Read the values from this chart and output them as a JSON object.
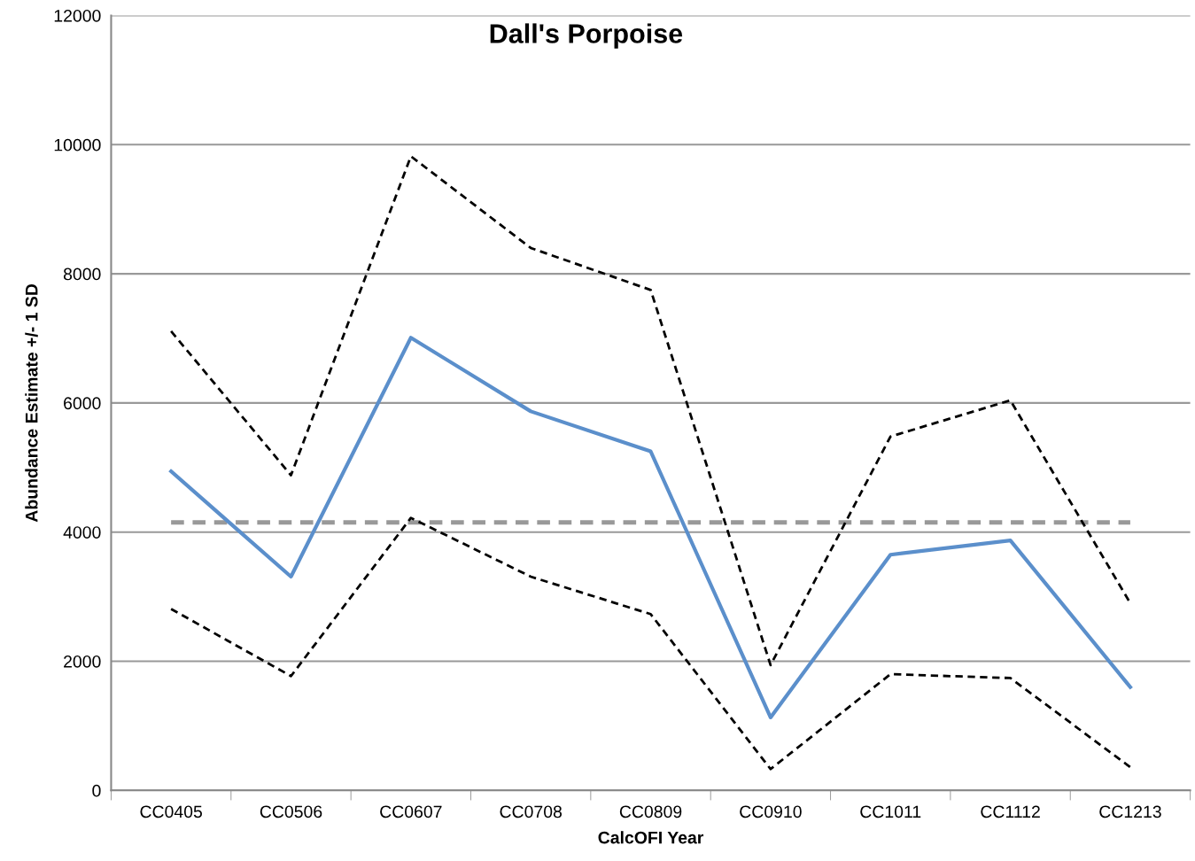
{
  "chart_data": {
    "type": "line",
    "title": "Dall's Porpoise",
    "xlabel": "CalcOFI Year",
    "ylabel": "Abundance Estimate +/- 1 SD",
    "categories": [
      "CC0405",
      "CC0506",
      "CC0607",
      "CC0708",
      "CC0809",
      "CC0910",
      "CC1011",
      "CC1112",
      "CC1213"
    ],
    "series": [
      {
        "color": "#5b8fcb",
        "line_style": "solid",
        "values": [
          4940,
          3310,
          7010,
          5870,
          5250,
          1130,
          3650,
          3870,
          1600
        ]
      },
      {
        "color": "#000000",
        "line_style": "dashed",
        "values": [
          7110,
          4880,
          9820,
          8400,
          7750,
          1940,
          5480,
          6040,
          2900
        ]
      },
      {
        "color": "#000000",
        "line_style": "dashed",
        "values": [
          2810,
          1770,
          4220,
          3310,
          2730,
          330,
          1800,
          1740,
          360
        ]
      }
    ],
    "ref_lines": [
      {
        "axis": "y",
        "value": 4150,
        "color": "#999999",
        "line_style": "dashed"
      }
    ],
    "ylim": [
      0,
      12000
    ],
    "yticks": [
      0,
      2000,
      4000,
      6000,
      8000,
      10000,
      12000
    ],
    "grid": "y",
    "marker": "none"
  }
}
